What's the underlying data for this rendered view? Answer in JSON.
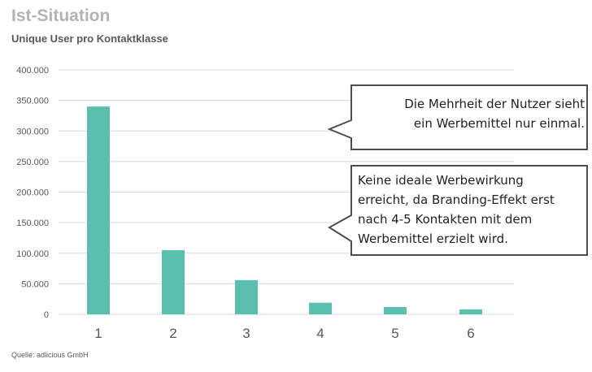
{
  "header": {
    "title": "Ist-Situation",
    "subtitle": "Unique User pro Kontaktklasse"
  },
  "footer": {
    "source": "Quelle: adlicious GmbH"
  },
  "callouts": [
    {
      "lines": [
        "Die Mehrheit der Nutzer sieht",
        "ein Werbemittel nur einmal."
      ]
    },
    {
      "lines": [
        "Keine ideale Werbewirkung",
        "erreicht, da Branding-Effekt erst",
        "nach 4-5 Kontakten mit dem",
        "Werbemittel erzielt wird."
      ]
    }
  ],
  "chart_data": {
    "type": "bar",
    "title": "Ist-Situation",
    "subtitle": "Unique User pro Kontaktklasse",
    "categories": [
      "1",
      "2",
      "3",
      "4",
      "5",
      "6"
    ],
    "values": [
      340000,
      105000,
      56000,
      19000,
      12000,
      8000
    ],
    "yticks": [
      "0",
      "50.000",
      "100.000",
      "150.000",
      "200.000",
      "250.000",
      "300.000",
      "350.000",
      "400.000"
    ],
    "ylim": [
      0,
      400000
    ],
    "grid": true,
    "bar_color": "#5bbfb0",
    "xlabel": "",
    "ylabel": ""
  }
}
